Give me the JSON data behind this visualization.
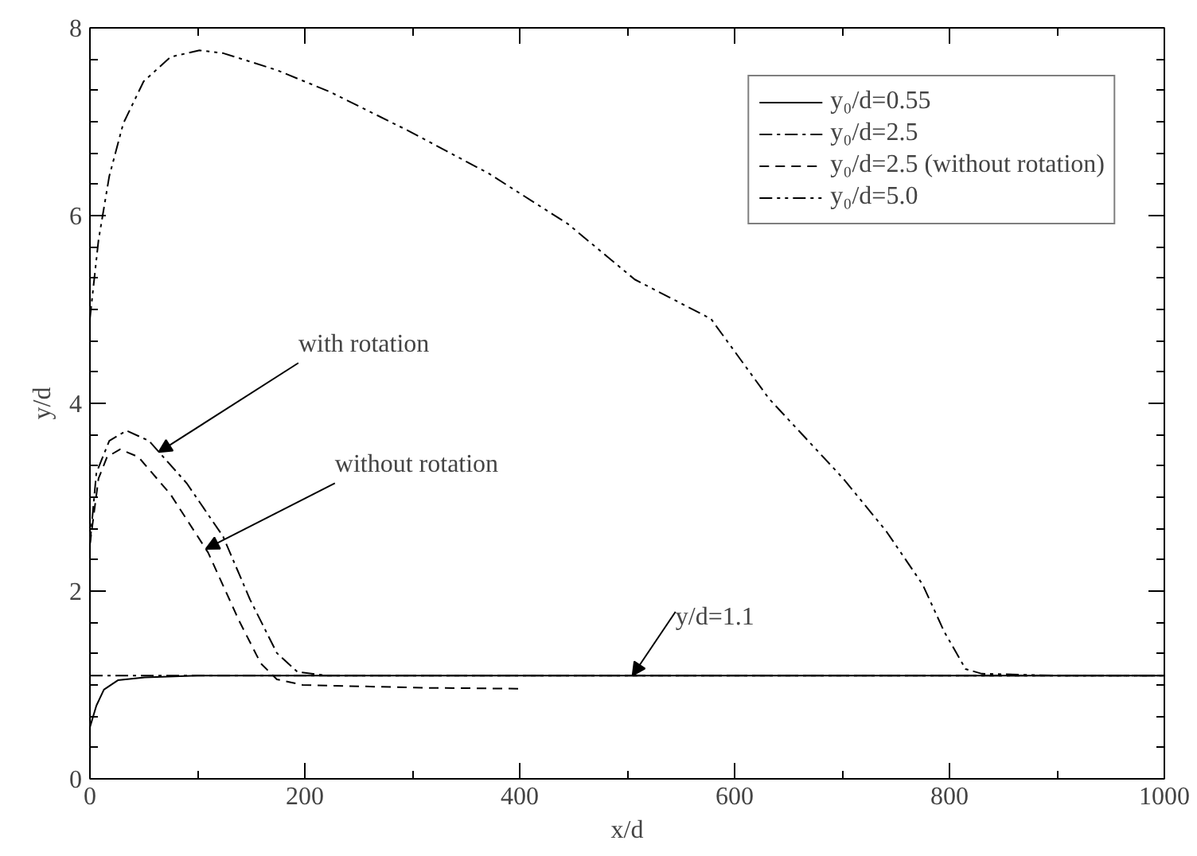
{
  "chart_data": {
    "type": "line",
    "xlabel": "x/d",
    "ylabel": "y/d",
    "xlim": [
      0,
      1000
    ],
    "ylim": [
      0,
      8
    ],
    "xticks": [
      0,
      200,
      400,
      600,
      800,
      1000
    ],
    "yticks": [
      0,
      2,
      4,
      6,
      8
    ],
    "grid": false,
    "legend": "top right",
    "series": [
      {
        "name": "y₀/d=0.55",
        "color": "#000000",
        "line_style": "solid",
        "x": [
          0,
          6,
          13,
          26,
          51,
          100,
          200,
          400,
          600,
          800,
          1000
        ],
        "values": [
          0.55,
          0.78,
          0.95,
          1.05,
          1.08,
          1.1,
          1.1,
          1.1,
          1.1,
          1.1,
          1.1
        ]
      },
      {
        "name": "y₀/d=2.5",
        "color": "#000000",
        "line_style": "dashdot",
        "x": [
          0,
          6,
          18,
          34,
          55,
          90,
          124,
          149,
          174,
          193,
          220,
          400,
          600,
          800,
          1000
        ],
        "values": [
          2.5,
          3.26,
          3.6,
          3.71,
          3.6,
          3.15,
          2.58,
          1.91,
          1.34,
          1.14,
          1.1,
          1.1,
          1.1,
          1.1,
          1.1
        ]
      },
      {
        "name": "y₀/d=2.5 (without rotation)",
        "color": "#000000",
        "line_style": "dashed",
        "x": [
          0,
          8,
          16,
          28,
          45,
          75,
          110,
          139,
          159,
          174,
          198,
          309,
          400
        ],
        "values": [
          2.5,
          3.2,
          3.43,
          3.51,
          3.43,
          3.03,
          2.41,
          1.68,
          1.23,
          1.06,
          1.0,
          0.97,
          0.96
        ]
      },
      {
        "name": "y₀/d=5.0",
        "color": "#000000",
        "line_style": "dashdotdot",
        "x": [
          0,
          1,
          8,
          18,
          31,
          50,
          75,
          102,
          124,
          174,
          223,
          297,
          371,
          445,
          507,
          578,
          632,
          701,
          741,
          775,
          795,
          815,
          830,
          900,
          1000
        ],
        "values": [
          4.9,
          5.01,
          5.74,
          6.42,
          6.98,
          7.43,
          7.69,
          7.76,
          7.73,
          7.55,
          7.32,
          6.9,
          6.45,
          5.91,
          5.32,
          4.9,
          4.05,
          3.2,
          2.64,
          2.07,
          1.57,
          1.17,
          1.12,
          1.1,
          1.1
        ]
      }
    ],
    "ref_lines": [
      {
        "axis": "y",
        "value": 1.1,
        "label": "y/d=1.1",
        "line_style": "dashdot",
        "color": "#000000"
      }
    ],
    "annotations": [
      {
        "text": "with rotation",
        "x": 64,
        "y": 3.48
      },
      {
        "text": "without rotation",
        "x": 108,
        "y": 2.45
      }
    ]
  }
}
